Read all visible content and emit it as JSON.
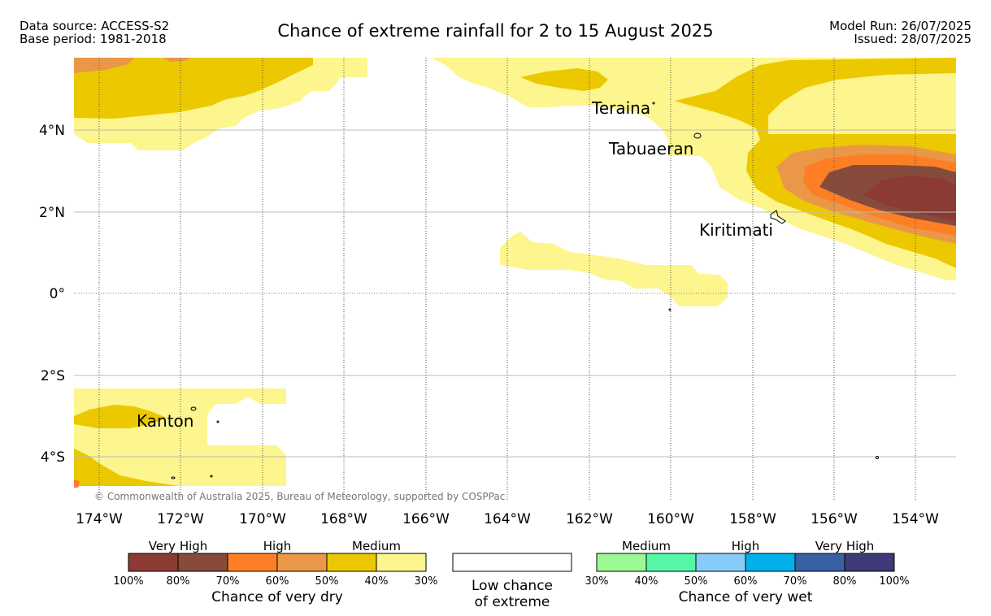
{
  "header": {
    "data_source": "Data source: ACCESS-S2",
    "base_period": "Base period: 1981-2018",
    "title": "Chance of extreme rainfall for 2 to 15 August 2025",
    "model_run": "Model Run: 26/07/2025",
    "issued": "Issued: 28/07/2025"
  },
  "map": {
    "places": [
      "Teraina",
      "Tabuaeran",
      "Kiritimati",
      "Kanton"
    ],
    "lat_labels": [
      "4°N",
      "2°N",
      "0°",
      "2°S",
      "4°S"
    ],
    "lon_labels": [
      "174°W",
      "172°W",
      "170°W",
      "168°W",
      "166°W",
      "164°W",
      "162°W",
      "160°W",
      "158°W",
      "156°W",
      "154°W"
    ],
    "copyright": "© Commonwealth of Australia 2025, Bureau of Meteorology, supported by COSPPac",
    "colors": {
      "dry_30_40": "#fdf58d",
      "dry_40_50": "#ecc800",
      "dry_50_60": "#ea9848",
      "dry_60_70": "#fc7f25",
      "dry_70_80": "#864b3a",
      "dry_80_100": "#8b3a34"
    }
  },
  "legend": {
    "dry": {
      "headers": [
        "Very High",
        "High",
        "Medium"
      ],
      "colors": [
        "#8b3a34",
        "#864b3a",
        "#fc7f25",
        "#ea9848",
        "#ecc800",
        "#fdf58d"
      ],
      "ticks": [
        "100%",
        "80%",
        "70%",
        "60%",
        "50%",
        "40%",
        "30%"
      ],
      "caption": "Chance of very dry"
    },
    "low": {
      "line1": "Low chance",
      "line2": "of extreme"
    },
    "wet": {
      "headers": [
        "Medium",
        "High",
        "Very High"
      ],
      "colors": [
        "#9cf893",
        "#55f8a6",
        "#87ccf8",
        "#00b0e8",
        "#3860a2",
        "#3e3a77"
      ],
      "ticks": [
        "30%",
        "40%",
        "50%",
        "60%",
        "70%",
        "80%",
        "100%"
      ],
      "caption": "Chance of very wet"
    }
  }
}
